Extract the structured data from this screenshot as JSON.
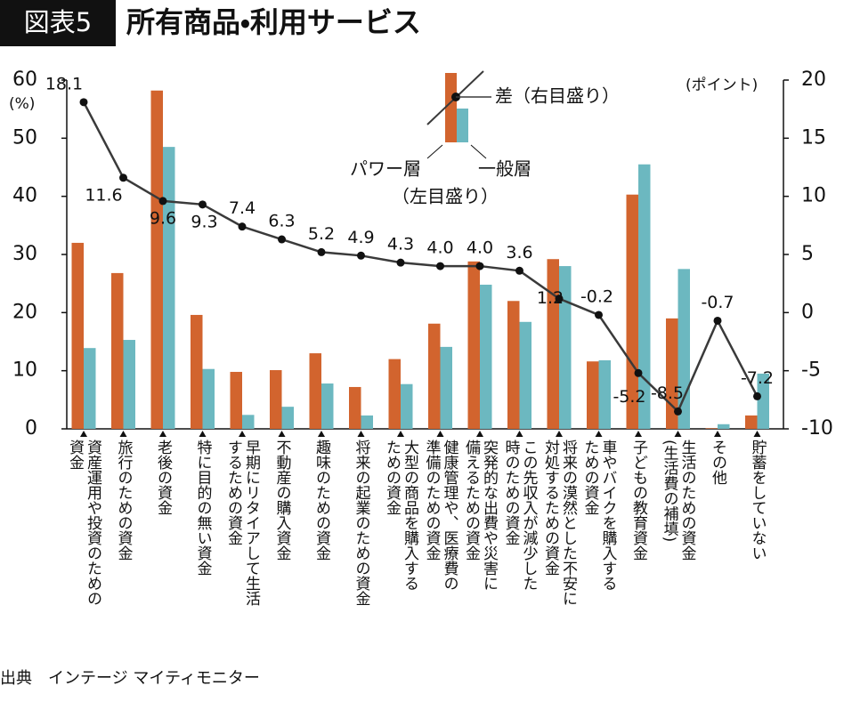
{
  "chart_data": {
    "type": "bar_line",
    "badge": "図表5",
    "title": "所有商品・利用サービス",
    "ylabel": "(%)",
    "y2label": "(ポイント)",
    "source": "出典　インテージ マイティモニター",
    "legend_notes": {
      "diff": "（右目盛り）",
      "bars": "（左目盛り）"
    },
    "categories": [
      "資産運用や投資のための\n資金",
      "旅行のための資金",
      "老後の資金",
      "特に目的の無い資金",
      "早期にリタイアして生活\nするための資金",
      "不動産の購入資金",
      "趣味のための資金",
      "将来の起業のための資金",
      "大型の商品を購入する\nための資金",
      "健康管理や、医療費の\n準備のための資金",
      "突発的な出費や災害に\n備えるための資金",
      "この先収入が減少した\n時のための資金",
      "将来の漠然とした不安に\n対処するための資金",
      "車やバイクを購入する\nための資金",
      "子どもの教育資金",
      "生活のための資金\n(生活費の補填)",
      "その他",
      "貯蓄をしていない"
    ],
    "series": [
      {
        "name": "パワー層",
        "color": "#d2642e",
        "values": [
          32.0,
          26.8,
          58.2,
          19.6,
          9.8,
          10.1,
          13.0,
          7.2,
          12.0,
          18.1,
          28.8,
          22.0,
          29.2,
          11.6,
          40.3,
          19.0,
          0.1,
          2.3
        ]
      },
      {
        "name": "一般層",
        "color": "#6cb8c0",
        "values": [
          13.9,
          15.3,
          48.5,
          10.3,
          2.4,
          3.8,
          7.8,
          2.3,
          7.7,
          14.1,
          24.8,
          18.4,
          28.0,
          11.8,
          45.5,
          27.5,
          0.8,
          9.5
        ]
      },
      {
        "name": "差",
        "color": "#3a3a3a",
        "axis": "y2",
        "values": [
          18.1,
          11.6,
          9.6,
          9.3,
          7.4,
          6.3,
          5.2,
          4.9,
          4.3,
          4.0,
          4.0,
          3.6,
          1.2,
          -0.2,
          -5.2,
          -8.5,
          -0.7,
          -7.2
        ],
        "value_labels": [
          "18.1",
          "11.6",
          "9.6",
          "9.3",
          "7.4",
          "6.3",
          "5.2",
          "4.9",
          "4.3",
          "4.0",
          "4.0",
          "3.6",
          "1.2",
          "-0.2",
          "-5.2",
          "-8.5",
          "-0.7",
          "-7.2"
        ]
      }
    ],
    "ylim": [
      0,
      60
    ],
    "yticks": [
      0,
      10,
      20,
      30,
      40,
      50,
      60
    ],
    "y2lim": [
      -10,
      20
    ],
    "y2ticks": [
      -10,
      -5,
      0,
      5,
      10,
      15,
      20
    ]
  }
}
